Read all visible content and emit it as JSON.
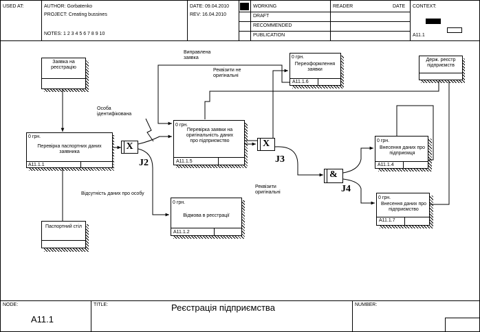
{
  "header": {
    "used_at": "USED AT:",
    "author": "AUTHOR: Gorbatenko",
    "project": "PROJECT: Creating bussines",
    "notes": "NOTES: 1 2 3 4 5 6 7 8 9 10",
    "date": "DATE: 09.04.2010",
    "rev": "REV: 16.04.2010",
    "status": [
      "WORKING",
      "DRAFT",
      "RECOMMENDED",
      "PUBLICATION"
    ],
    "reader": "READER",
    "reader_date": "DATE",
    "context": "CONTEXT:",
    "context_node": "A11.1"
  },
  "footer": {
    "node_label": "NODE:",
    "node_value": "A11.1",
    "title_label": "TITLE:",
    "title_value": "Реєстрація підприємства",
    "number_label": "NUMBER:"
  },
  "diagram": {
    "arrows": {
      "request": "Заявка на реєстрацію",
      "passport": "Паспортний стіл",
      "registry": "Держ. реєстр підприємств",
      "identified": "Особа ідентифікована",
      "no_data": "Відсутність даних про особу",
      "corrected": "Виправлена заявка",
      "not_original": "Реквізити не оригінальні",
      "original": "Реквізити оригінальні"
    },
    "boxes": [
      {
        "cost": "0 грн.",
        "label": "Перевірка паспортних даних заявника",
        "node": "A11.1.1"
      },
      {
        "cost": "0 грн.",
        "label": "Перевірка заявки на оригінальність даних про підприємство",
        "node": "A11.1.5"
      },
      {
        "cost": "0 грн.",
        "label": "Переоформлення заявки",
        "node": "A11.1.6"
      },
      {
        "cost": "0 грн.",
        "label": "Відмова в реєстрації",
        "node": "A11.1.2"
      },
      {
        "cost": "0 грн.",
        "label": "Внесення даних про підприємця",
        "node": "A11.1.4"
      },
      {
        "cost": "0 грн.",
        "label": "Внесення даних про підприємство",
        "node": "A11.1.7"
      }
    ],
    "junctions": [
      {
        "symbol": "X",
        "name": "J2"
      },
      {
        "symbol": "X",
        "name": "J3"
      },
      {
        "symbol": "&",
        "name": "J4"
      }
    ]
  }
}
